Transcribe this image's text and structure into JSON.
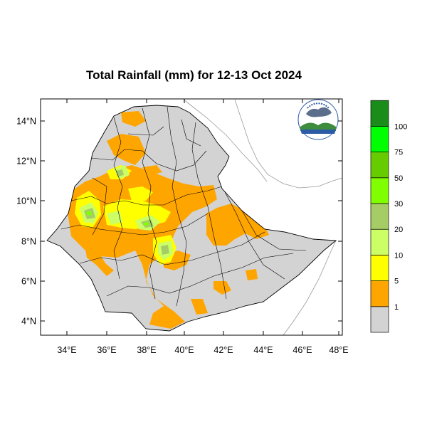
{
  "title": "Total Rainfall (mm) for 12-13 Oct 2024",
  "map": {
    "region": "Ethiopia",
    "lon_range": [
      32.7,
      48.2
    ],
    "lat_range": [
      3.2,
      15.0
    ],
    "x_ticks": [
      "34°E",
      "36°E",
      "38°E",
      "40°E",
      "42°E",
      "44°E",
      "46°E",
      "48°E"
    ],
    "y_ticks": [
      "14°N",
      "12°N",
      "10°N",
      "8°N",
      "6°N",
      "4°N"
    ]
  },
  "colorbar": {
    "levels": [
      "1",
      "5",
      "10",
      "20",
      "30",
      "50",
      "75",
      "100"
    ],
    "colors": [
      "#d3d3d3",
      "#ffa500",
      "#ffff00",
      "#ccff66",
      "#a6cc66",
      "#80ff00",
      "#66cc00",
      "#00ff00",
      "#1a8c1a"
    ]
  },
  "colors": {
    "land": "#d3d3d3",
    "border": "#000000",
    "coast": "#9a9a9a"
  }
}
